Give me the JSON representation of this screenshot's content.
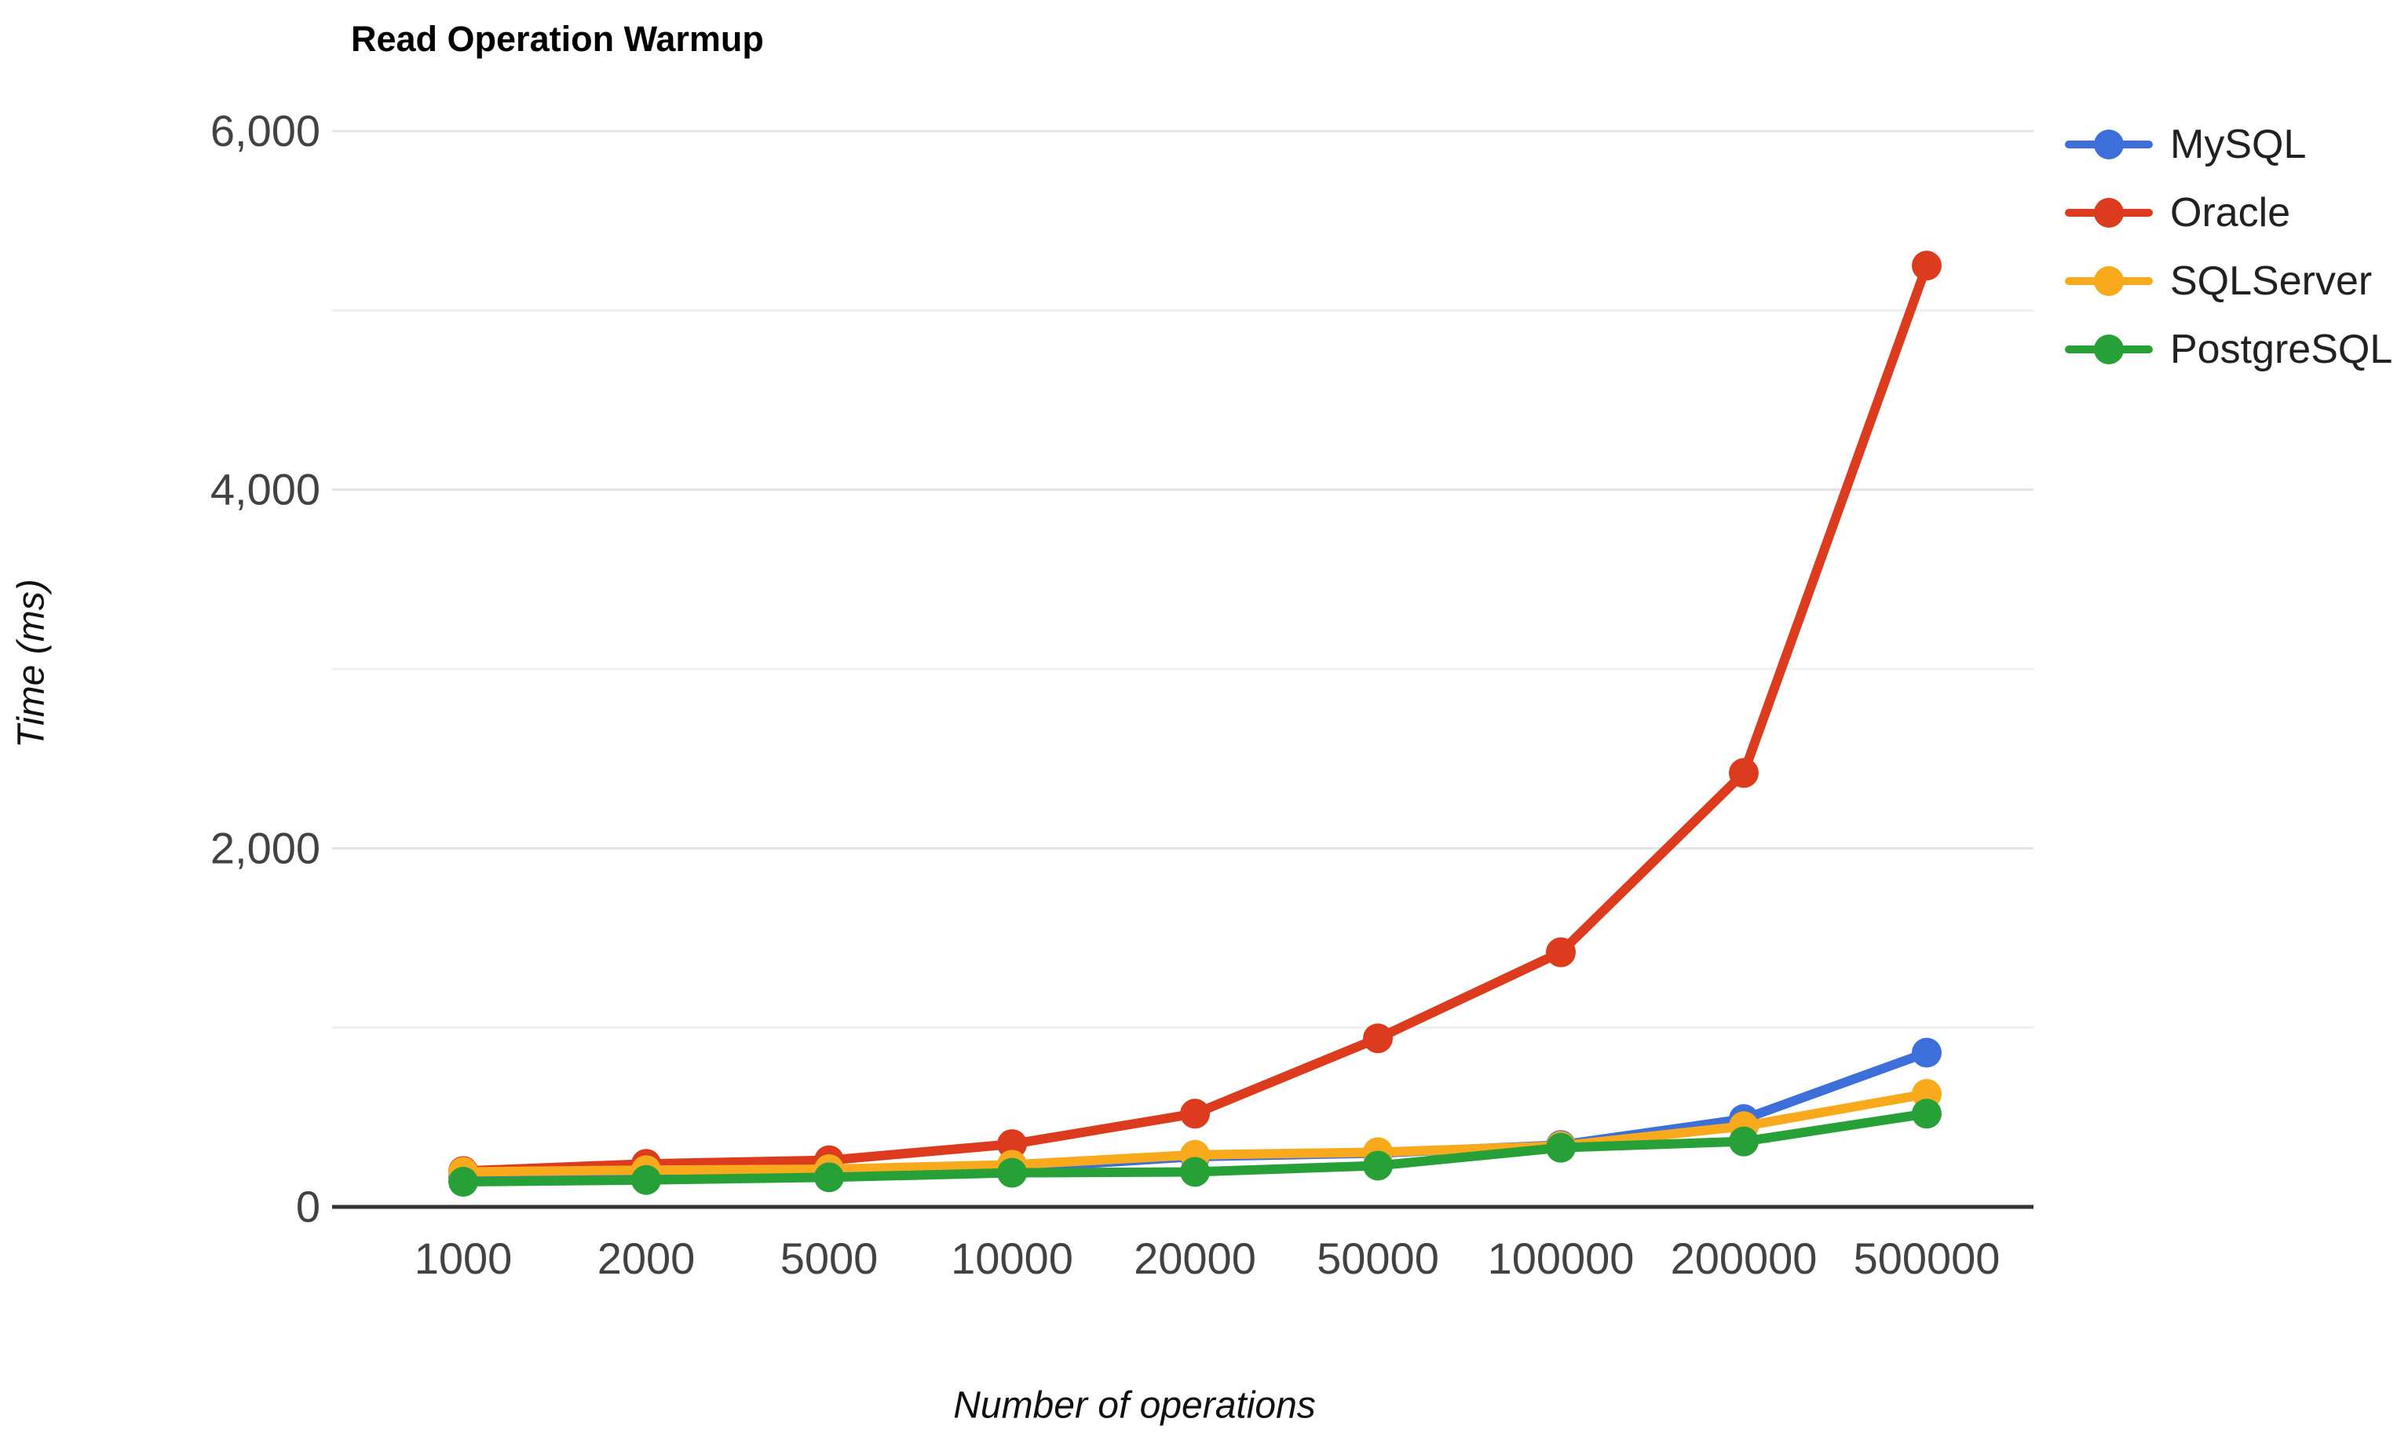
{
  "chart": {
    "title": "Read Operation Warmup",
    "xlabel": "Number of operations",
    "ylabel": "Time (ms)"
  },
  "chart_data": {
    "type": "line",
    "title": "Read Operation Warmup",
    "xlabel": "Number of operations",
    "ylabel": "Time (ms)",
    "categories": [
      "1000",
      "2000",
      "5000",
      "10000",
      "20000",
      "50000",
      "100000",
      "200000",
      "500000"
    ],
    "series": [
      {
        "name": "MySQL",
        "color": "#3D6FDB",
        "values": [
          170,
          185,
          195,
          215,
          280,
          300,
          345,
          490,
          860
        ]
      },
      {
        "name": "Oracle",
        "color": "#DD3B1E",
        "values": [
          200,
          240,
          260,
          350,
          520,
          940,
          1420,
          2420,
          5250
        ]
      },
      {
        "name": "SQLServer",
        "color": "#F9A91C",
        "values": [
          195,
          205,
          210,
          235,
          290,
          305,
          340,
          450,
          630
        ]
      },
      {
        "name": "PostgreSQL",
        "color": "#28A038",
        "values": [
          140,
          150,
          165,
          190,
          195,
          230,
          330,
          365,
          520
        ]
      }
    ],
    "ylim": [
      0,
      6000
    ],
    "y_major_ticks": [
      {
        "value": 0,
        "label": "0"
      },
      {
        "value": 2000,
        "label": "2,000"
      },
      {
        "value": 4000,
        "label": "4,000"
      },
      {
        "value": 6000,
        "label": "6,000"
      }
    ],
    "y_minor_ticks": [
      1000,
      3000,
      5000
    ],
    "grid": "on",
    "legend_position": "right",
    "colors": {
      "axis_line": "#333333",
      "major_grid": "#e3e3e3",
      "minor_grid": "#f0f0f0",
      "tick_text": "#424242"
    }
  }
}
